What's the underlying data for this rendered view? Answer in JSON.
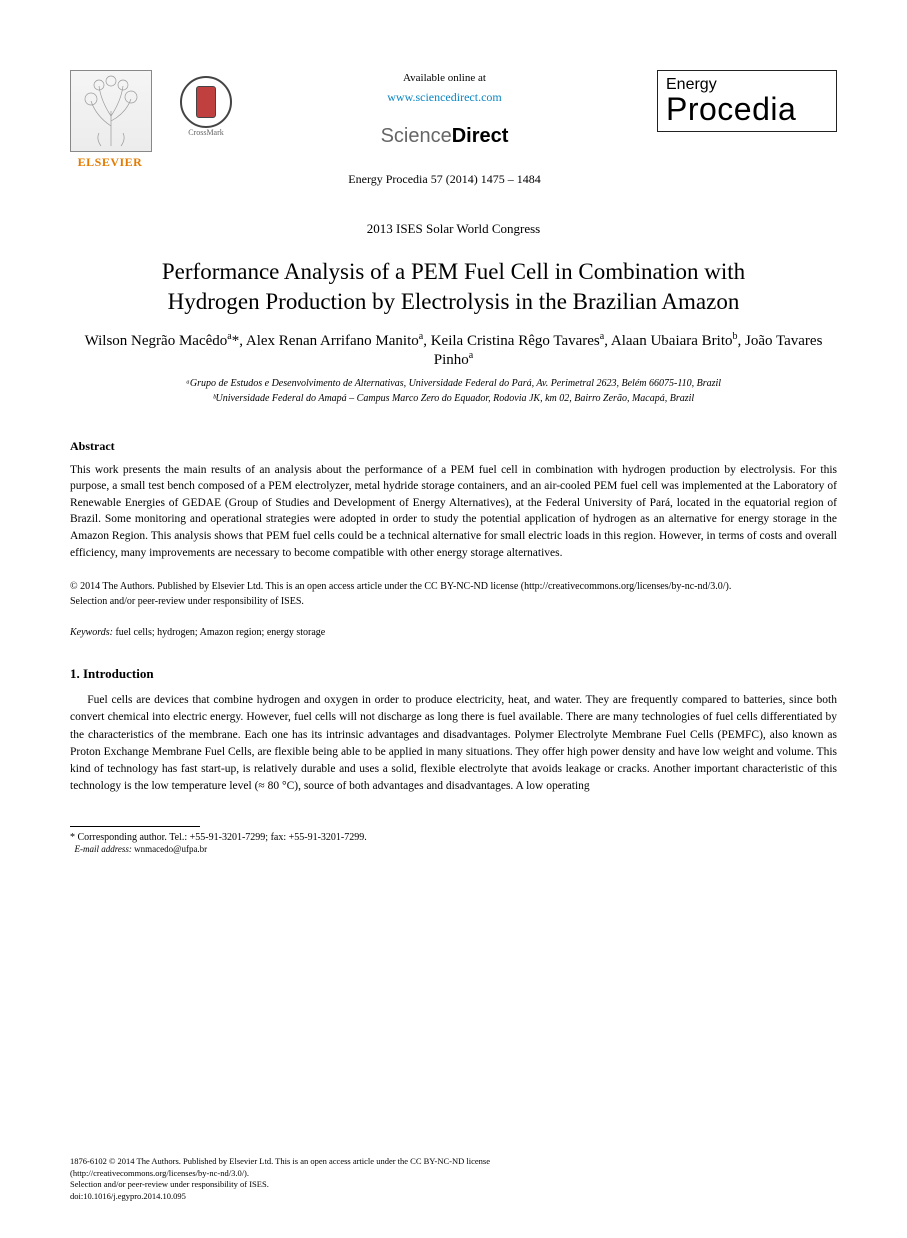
{
  "header": {
    "elsevier_brand": "ELSEVIER",
    "crossmark_label": "CrossMark",
    "available_at": "Available online at",
    "sciencedirect_url": "www.sciencedirect.com",
    "sd_word_left": "Science",
    "sd_word_right": "Direct",
    "journal_ref": "Energy Procedia 57 (2014) 1475 – 1484",
    "journal_box_top": "Energy",
    "journal_box_main": "Procedia"
  },
  "conference": "2013 ISES Solar World Congress",
  "title": "Performance Analysis of a PEM Fuel Cell in Combination with Hydrogen Production by Electrolysis in the Brazilian Amazon",
  "authors_html": "Wilson Negrão Macêdo<sup>a</sup>*, Alex Renan Arrifano Manito<sup>a</sup>, Keila Cristina Rêgo Tavares<sup>a</sup>, Alaan Ubaiara Brito<sup>b</sup>, João Tavares Pinho<sup>a</sup>",
  "affiliations": [
    "ᵃGrupo de Estudos e Desenvolvimento de Alternativas, Universidade Federal do Pará, Av. Perimetral 2623, Belém 66075-110, Brazil",
    "ᵇUniversidade Federal do Amapá – Campus Marco Zero do Equador, Rodovia JK, km 02, Bairro Zerão, Macapá, Brazil"
  ],
  "abstract_head": "Abstract",
  "abstract": "This work presents the main results of an analysis about the performance of a PEM fuel cell in combination with hydrogen production by electrolysis. For this purpose, a small test bench composed of a PEM electrolyzer, metal hydride storage containers, and an air-cooled PEM fuel cell was implemented at the Laboratory of Renewable Energies of GEDAE (Group of Studies and Development of Energy Alternatives), at the Federal University of Pará, located in the equatorial region of Brazil. Some monitoring and operational strategies were adopted in order to study the potential application of hydrogen as an alternative for energy storage in the Amazon Region. This analysis shows that PEM fuel cells could be a technical alternative for small electric loads in this region. However, in terms of costs and overall efficiency, many improvements are necessary to become compatible with other energy storage alternatives.",
  "copyright": "© 2014 The Authors. Published by Elsevier Ltd. This is an open access article under the CC BY-NC-ND license (http://creativecommons.org/licenses/by-nc-nd/3.0/).",
  "peer_review": "Selection and/or peer-review under responsibility of ISES.",
  "keywords_label": "Keywords:",
  "keywords": "fuel cells; hydrogen; Amazon region; energy storage",
  "section_head": "1. Introduction",
  "intro": "Fuel cells are devices that combine hydrogen and oxygen in order to produce electricity, heat, and water. They are frequently compared to batteries, since both convert chemical into electric energy. However, fuel cells will not discharge as long there is fuel available. There are many technologies of fuel cells differentiated by the characteristics of the membrane. Each one has its intrinsic advantages and disadvantages. Polymer Electrolyte Membrane Fuel Cells (PEMFC), also known as Proton Exchange Membrane Fuel Cells, are flexible being able to be applied in many situations. They offer high power density and have low weight and volume. This kind of technology has fast start-up, is relatively durable and uses a solid, flexible electrolyte that avoids leakage or cracks. Another important characteristic of this technology is the low temperature level (≈ 80 °C), source of both advantages and disadvantages. A low operating",
  "footnote_marker": "* Corresponding author. Tel.: +55-91-3201-7299; fax: +55-91-3201-7299.",
  "footnote_email_label": "E-mail address:",
  "footnote_email": "wnmacedo@ufpa.br",
  "footer_line1": "1876-6102 © 2014 The Authors. Published by Elsevier Ltd. This is an open access article under the CC BY-NC-ND license",
  "footer_line2": "(http://creativecommons.org/licenses/by-nc-nd/3.0/).",
  "footer_line3": "Selection and/or peer-review under responsibility of ISES.",
  "footer_line4": "doi:10.1016/j.egypro.2014.10.095"
}
